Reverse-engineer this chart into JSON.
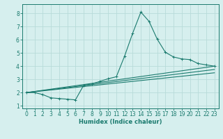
{
  "title": "",
  "xlabel": "Humidex (Indice chaleur)",
  "bg_color": "#d6efee",
  "grid_color": "#b8dbd9",
  "line_color": "#1a7a6e",
  "xlim": [
    -0.5,
    23.5
  ],
  "ylim": [
    0.8,
    8.7
  ],
  "xticks": [
    0,
    1,
    2,
    3,
    4,
    5,
    6,
    7,
    8,
    9,
    10,
    11,
    12,
    13,
    14,
    15,
    16,
    17,
    18,
    19,
    20,
    21,
    22,
    23
  ],
  "yticks": [
    1,
    2,
    3,
    4,
    5,
    6,
    7,
    8
  ],
  "series1_x": [
    0,
    1,
    2,
    3,
    4,
    5,
    6,
    7,
    8,
    9,
    10,
    11,
    12,
    13,
    14,
    15,
    16,
    17,
    18,
    19,
    20,
    21,
    22,
    23
  ],
  "series1_y": [
    2.0,
    2.0,
    1.85,
    1.6,
    1.55,
    1.5,
    1.45,
    2.55,
    2.65,
    2.85,
    3.05,
    3.2,
    4.75,
    6.5,
    8.1,
    7.4,
    6.05,
    5.05,
    4.7,
    4.55,
    4.5,
    4.2,
    4.1,
    4.0
  ],
  "series2_x": [
    0,
    23
  ],
  "series2_y": [
    2.0,
    4.0
  ],
  "series3_x": [
    0,
    23
  ],
  "series3_y": [
    2.0,
    3.75
  ],
  "series4_x": [
    0,
    23
  ],
  "series4_y": [
    2.0,
    3.5
  ]
}
